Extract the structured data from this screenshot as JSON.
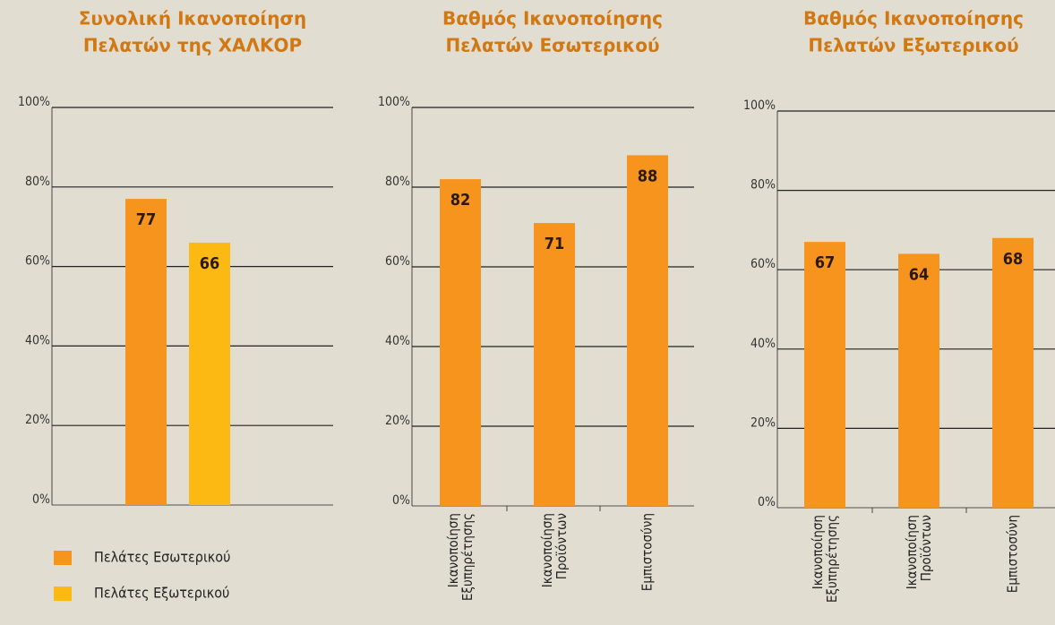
{
  "chart_data": [
    {
      "type": "bar",
      "title": [
        "Συνολική Ικανοποίηση",
        "Πελατών της ΧΑΛΚΟΡ"
      ],
      "categories": [
        null
      ],
      "series": [
        {
          "name": "Πελάτες Εσωτερικού",
          "color": "#f7941d",
          "values": [
            77
          ]
        },
        {
          "name": "Πελάτες Εξωτερικού",
          "color": "#fdb913",
          "values": [
            66
          ]
        }
      ],
      "ylim": [
        0,
        100
      ],
      "yticks": [
        {
          "value": 0,
          "label": "0%"
        },
        {
          "value": 20,
          "label": "20%"
        },
        {
          "value": 40,
          "label": "40%"
        },
        {
          "value": 60,
          "label": "60%"
        },
        {
          "value": 80,
          "label": "80%"
        },
        {
          "value": 100,
          "label": "100%"
        }
      ],
      "grid": true
    },
    {
      "type": "bar",
      "title": [
        "Βαθμός Ικανοποίησης",
        "Πελατών Εσωτερικού"
      ],
      "categories": [
        "Ικανοποίηση Εξυπηρέτησης",
        "Ικανοποίηση Προϊόντων",
        "Εμπιστοσύνη"
      ],
      "values": [
        82,
        71,
        88
      ],
      "color": "#f7941d",
      "ylim": [
        0,
        100
      ],
      "yticks": [
        {
          "value": 0,
          "label": "0%"
        },
        {
          "value": 20,
          "label": "20%"
        },
        {
          "value": 40,
          "label": "40%"
        },
        {
          "value": 60,
          "label": "60%"
        },
        {
          "value": 80,
          "label": "80%"
        },
        {
          "value": 100,
          "label": "100%"
        }
      ],
      "grid": true
    },
    {
      "type": "bar",
      "title": [
        "Βαθμός Ικανοποίησης",
        "Πελατών Εξωτερικού"
      ],
      "categories": [
        "Ικανοποίηση Εξυπηρέτησης",
        "Ικανοποίηση Προϊόντων",
        "Εμπιστοσύνη"
      ],
      "values": [
        67,
        64,
        68
      ],
      "color": "#f7941d",
      "ylim": [
        0,
        100
      ],
      "yticks": [
        {
          "value": 0,
          "label": "0%"
        },
        {
          "value": 20,
          "label": "20%"
        },
        {
          "value": 40,
          "label": "40%"
        },
        {
          "value": 60,
          "label": "60%"
        },
        {
          "value": 80,
          "label": "80%"
        },
        {
          "value": 100,
          "label": "100%"
        }
      ],
      "grid": true
    }
  ]
}
